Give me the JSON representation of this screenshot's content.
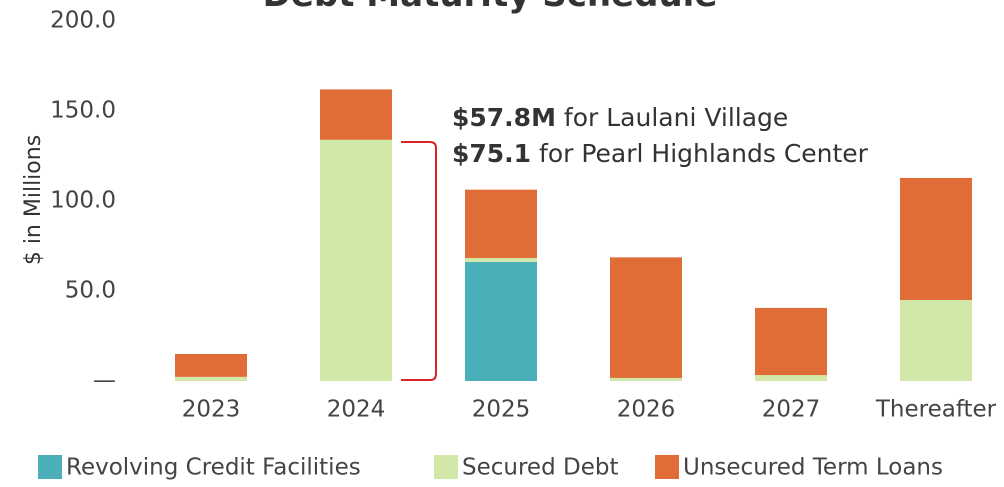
{
  "chart_data": {
    "type": "stacked_bar",
    "title": "Debt Maturity Schedule",
    "ylabel": "$ in Millions",
    "categories": [
      "2023",
      "2024",
      "2025",
      "2026",
      "2027",
      "Thereafter"
    ],
    "series": [
      {
        "name": "Revolving Credit Facilities",
        "color": "#4aafb8",
        "values": [
          0,
          0,
          66.1,
          0,
          0,
          0
        ]
      },
      {
        "name": "Secured Debt",
        "color": "#d2e8a9",
        "values": [
          2.3,
          134,
          2.2,
          1.7,
          3.3,
          45
        ]
      },
      {
        "name": "Unsecured Term Loans",
        "color": "#e06c38",
        "values": [
          12.7,
          28,
          38,
          67,
          37.3,
          67.8
        ]
      }
    ],
    "ylim": [
      0,
      200
    ],
    "yticks": [
      {
        "value": 0,
        "label": "—"
      },
      {
        "value": 50,
        "label": "50.0"
      },
      {
        "value": 100,
        "label": "100.0"
      },
      {
        "value": 150,
        "label": "150.0"
      },
      {
        "value": 200,
        "label": "200.0"
      }
    ],
    "annotations": [
      {
        "bold": "$57.8M",
        "text": " for Laulani Village"
      },
      {
        "bold": "$75.1",
        "text": " for Pearl Highlands Center"
      }
    ]
  }
}
